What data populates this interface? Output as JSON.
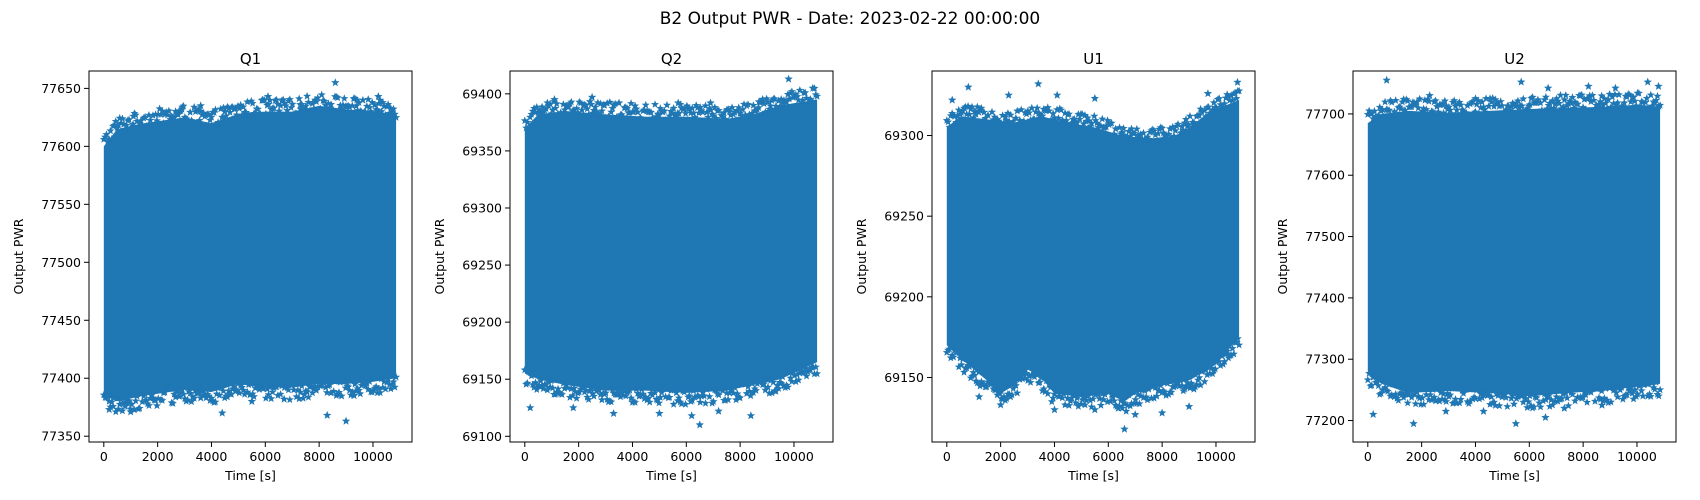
{
  "figure": {
    "suptitle": "B2 Output PWR - Date: 2023-02-22 00:00:00",
    "marker_color": "#1f77b4",
    "marker": "star"
  },
  "chart_data": [
    {
      "type": "scatter",
      "title": "Q1",
      "xlabel": "Time [s]",
      "ylabel": "Output PWR",
      "xlim": [
        -550,
        11450
      ],
      "ylim": [
        77345,
        77665
      ],
      "xticks": [
        0,
        2000,
        4000,
        6000,
        8000,
        10000
      ],
      "yticks": [
        77350,
        77400,
        77450,
        77500,
        77550,
        77600,
        77650
      ],
      "x_range": [
        0,
        10860
      ],
      "band_top": [
        [
          0,
          77600
        ],
        [
          500,
          77615
        ],
        [
          1500,
          77620
        ],
        [
          3000,
          77625
        ],
        [
          4000,
          77620
        ],
        [
          5000,
          77628
        ],
        [
          6000,
          77630
        ],
        [
          7000,
          77630
        ],
        [
          8000,
          77635
        ],
        [
          9000,
          77632
        ],
        [
          10000,
          77630
        ],
        [
          10860,
          77628
        ]
      ],
      "band_bottom": [
        [
          0,
          77385
        ],
        [
          500,
          77380
        ],
        [
          1500,
          77385
        ],
        [
          3000,
          77390
        ],
        [
          4000,
          77388
        ],
        [
          5000,
          77395
        ],
        [
          6000,
          77392
        ],
        [
          7000,
          77392
        ],
        [
          8000,
          77395
        ],
        [
          9000,
          77395
        ],
        [
          10000,
          77397
        ],
        [
          10860,
          77400
        ]
      ],
      "outliers_high": [
        [
          8600,
          77655
        ],
        [
          6100,
          77643
        ],
        [
          10200,
          77643
        ],
        [
          3600,
          77635
        ],
        [
          5900,
          77640
        ],
        [
          9400,
          77640
        ],
        [
          2900,
          77632
        ],
        [
          4500,
          77630
        ],
        [
          7300,
          77636
        ],
        [
          1100,
          77626
        ]
      ],
      "outliers_low": [
        [
          9000,
          77363
        ],
        [
          8300,
          77368
        ],
        [
          4400,
          77370
        ],
        [
          1000,
          77371
        ],
        [
          200,
          77373
        ],
        [
          5500,
          77380
        ],
        [
          6700,
          77382
        ],
        [
          3600,
          77383
        ],
        [
          9300,
          77385
        ]
      ]
    },
    {
      "type": "scatter",
      "title": "Q2",
      "xlabel": "Time [s]",
      "ylabel": "Output PWR",
      "xlim": [
        -550,
        11450
      ],
      "ylim": [
        69095,
        69420
      ],
      "xticks": [
        0,
        2000,
        4000,
        6000,
        8000,
        10000
      ],
      "yticks": [
        69100,
        69150,
        69200,
        69250,
        69300,
        69350,
        69400
      ],
      "x_range": [
        0,
        10860
      ],
      "band_top": [
        [
          0,
          69370
        ],
        [
          500,
          69382
        ],
        [
          1500,
          69385
        ],
        [
          3000,
          69382
        ],
        [
          4500,
          69380
        ],
        [
          6000,
          69380
        ],
        [
          7500,
          69378
        ],
        [
          8500,
          69382
        ],
        [
          9500,
          69390
        ],
        [
          10860,
          69395
        ]
      ],
      "band_bottom": [
        [
          0,
          69155
        ],
        [
          500,
          69150
        ],
        [
          1500,
          69145
        ],
        [
          3000,
          69140
        ],
        [
          4500,
          69140
        ],
        [
          6000,
          69138
        ],
        [
          7500,
          69140
        ],
        [
          8500,
          69145
        ],
        [
          9500,
          69150
        ],
        [
          10860,
          69165
        ]
      ],
      "outliers_high": [
        [
          9800,
          69413
        ],
        [
          10700,
          69405
        ],
        [
          1100,
          69395
        ],
        [
          2500,
          69397
        ],
        [
          3500,
          69392
        ],
        [
          5700,
          69392
        ],
        [
          6900,
          69392
        ],
        [
          8700,
          69393
        ]
      ],
      "outliers_low": [
        [
          6500,
          69110
        ],
        [
          200,
          69125
        ],
        [
          1800,
          69125
        ],
        [
          3300,
          69120
        ],
        [
          5000,
          69120
        ],
        [
          6200,
          69118
        ],
        [
          7200,
          69122
        ],
        [
          8400,
          69118
        ]
      ]
    },
    {
      "type": "scatter",
      "title": "U1",
      "xlabel": "Time [s]",
      "ylabel": "Output PWR",
      "xlim": [
        -550,
        11450
      ],
      "ylim": [
        69110,
        69340
      ],
      "xticks": [
        0,
        2000,
        4000,
        6000,
        8000,
        10000
      ],
      "yticks": [
        69150,
        69200,
        69250,
        69300
      ],
      "x_range": [
        0,
        10860
      ],
      "band_top": [
        [
          0,
          69305
        ],
        [
          500,
          69312
        ],
        [
          1500,
          69310
        ],
        [
          2500,
          69308
        ],
        [
          3500,
          69312
        ],
        [
          4500,
          69308
        ],
        [
          5500,
          69305
        ],
        [
          6500,
          69300
        ],
        [
          7500,
          69298
        ],
        [
          8500,
          69300
        ],
        [
          9000,
          69305
        ],
        [
          9800,
          69315
        ],
        [
          10860,
          69322
        ]
      ],
      "band_bottom": [
        [
          0,
          69170
        ],
        [
          500,
          69162
        ],
        [
          1000,
          69155
        ],
        [
          1500,
          69148
        ],
        [
          2000,
          69140
        ],
        [
          2500,
          69145
        ],
        [
          3000,
          69155
        ],
        [
          3500,
          69150
        ],
        [
          4000,
          69140
        ],
        [
          5000,
          69138
        ],
        [
          6000,
          69140
        ],
        [
          6600,
          69135
        ],
        [
          7000,
          69140
        ],
        [
          8000,
          69145
        ],
        [
          9000,
          69148
        ],
        [
          10000,
          69158
        ],
        [
          10860,
          69175
        ]
      ],
      "outliers_high": [
        [
          10800,
          69333
        ],
        [
          3400,
          69332
        ],
        [
          800,
          69330
        ],
        [
          2300,
          69325
        ],
        [
          4100,
          69325
        ],
        [
          5500,
          69323
        ],
        [
          9700,
          69326
        ],
        [
          200,
          69322
        ]
      ],
      "outliers_low": [
        [
          6600,
          69118
        ],
        [
          4000,
          69130
        ],
        [
          7000,
          69127
        ],
        [
          5500,
          69130
        ],
        [
          8000,
          69128
        ],
        [
          2000,
          69133
        ],
        [
          1200,
          69138
        ],
        [
          9000,
          69132
        ]
      ]
    },
    {
      "type": "scatter",
      "title": "U2",
      "xlabel": "Time [s]",
      "ylabel": "Output PWR",
      "xlim": [
        -550,
        11450
      ],
      "ylim": [
        77165,
        77770
      ],
      "xticks": [
        0,
        2000,
        4000,
        6000,
        8000,
        10000
      ],
      "yticks": [
        77200,
        77300,
        77400,
        77500,
        77600,
        77700
      ],
      "x_range": [
        0,
        10860
      ],
      "band_top": [
        [
          0,
          77685
        ],
        [
          500,
          77700
        ],
        [
          1500,
          77705
        ],
        [
          3000,
          77702
        ],
        [
          4500,
          77705
        ],
        [
          6000,
          77708
        ],
        [
          7500,
          77710
        ],
        [
          9000,
          77712
        ],
        [
          10000,
          77715
        ],
        [
          10860,
          77712
        ]
      ],
      "band_bottom": [
        [
          0,
          77275
        ],
        [
          500,
          77260
        ],
        [
          1500,
          77245
        ],
        [
          3000,
          77248
        ],
        [
          4500,
          77245
        ],
        [
          6000,
          77240
        ],
        [
          7500,
          77245
        ],
        [
          9000,
          77250
        ],
        [
          10000,
          77255
        ],
        [
          10860,
          77260
        ]
      ],
      "outliers_high": [
        [
          700,
          77755
        ],
        [
          5700,
          77752
        ],
        [
          10400,
          77752
        ],
        [
          10800,
          77745
        ],
        [
          8200,
          77745
        ],
        [
          6700,
          77742
        ],
        [
          9200,
          77742
        ],
        [
          2300,
          77730
        ],
        [
          4000,
          77725
        ]
      ],
      "outliers_low": [
        [
          1700,
          77195
        ],
        [
          5500,
          77195
        ],
        [
          200,
          77210
        ],
        [
          6600,
          77205
        ],
        [
          4300,
          77215
        ],
        [
          2900,
          77215
        ],
        [
          8700,
          77225
        ],
        [
          10400,
          77240
        ],
        [
          7300,
          77220
        ]
      ]
    }
  ]
}
